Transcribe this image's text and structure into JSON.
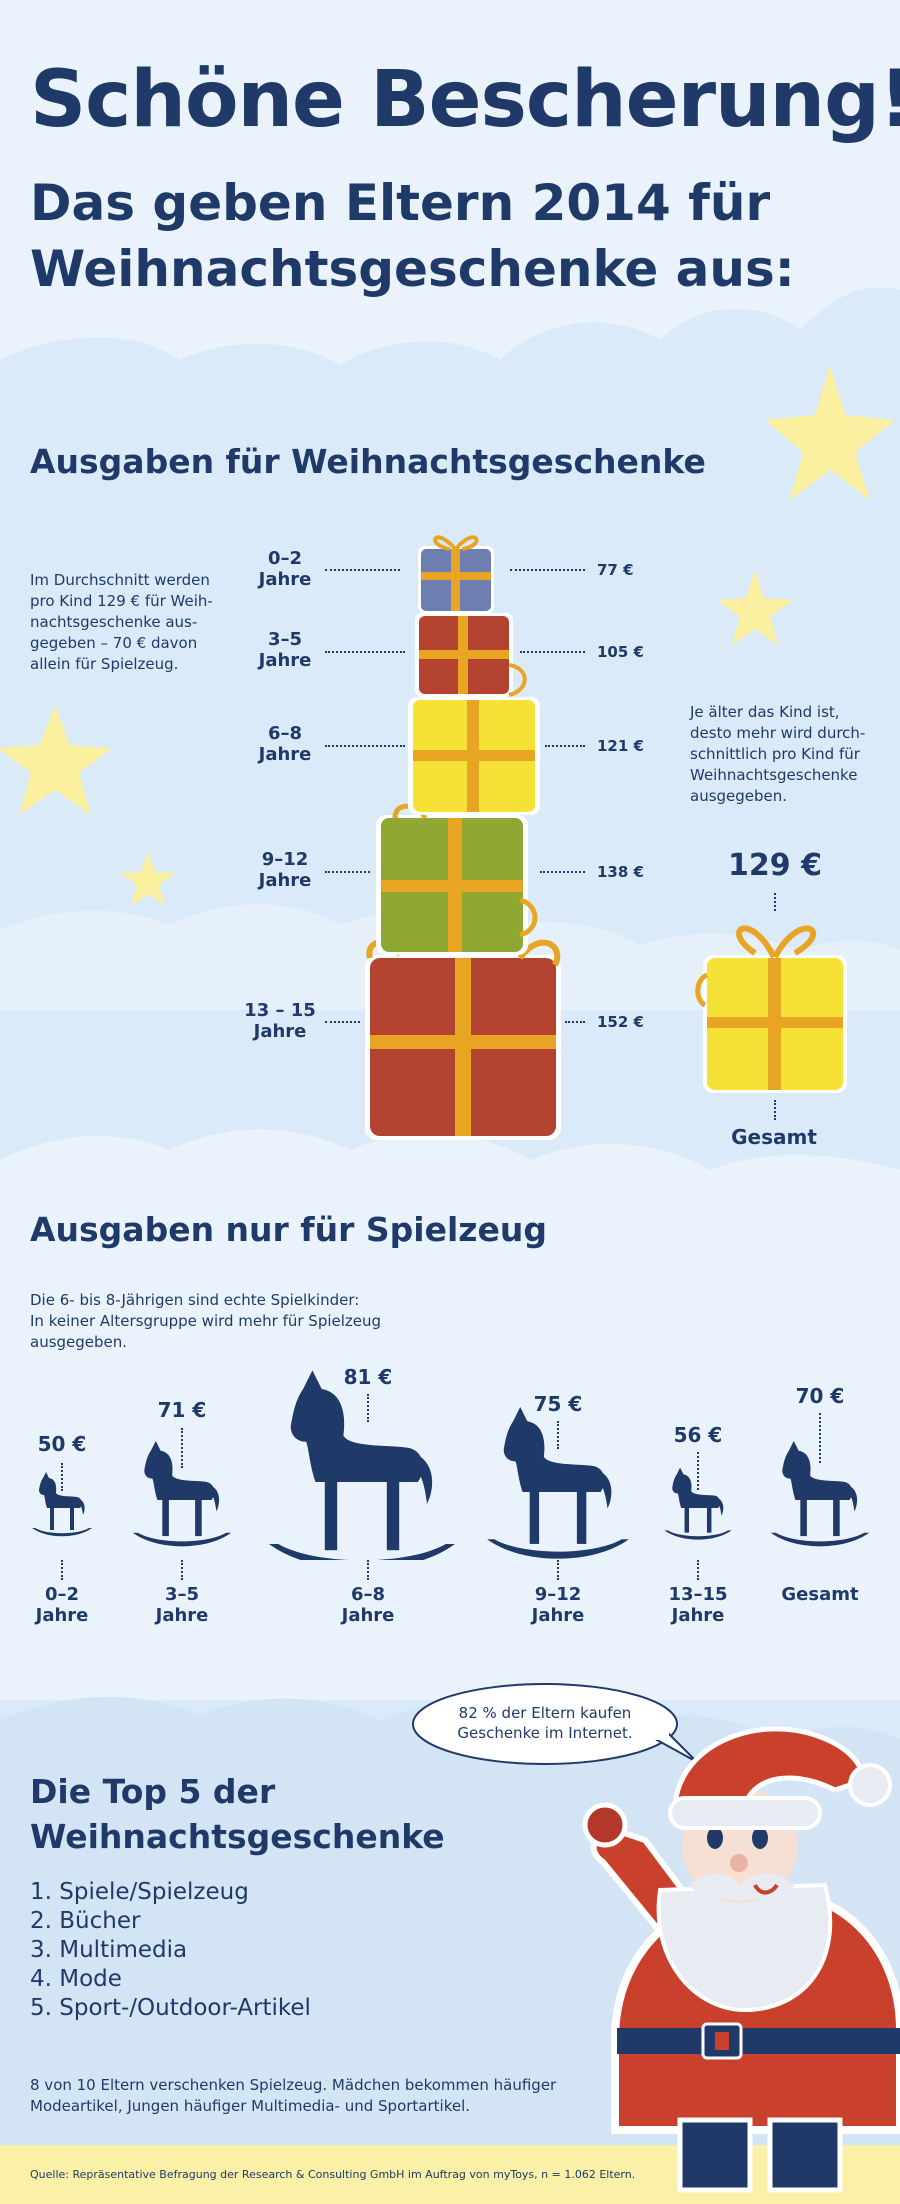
{
  "title": "Schöne Bescherung!",
  "subtitle_line1": "Das geben Eltern 2014 für",
  "subtitle_line2": "Weihnachtsgeschenke aus:",
  "gifts_section": {
    "heading": "Ausgaben für Weihnachtsgeschenke",
    "intro": "Im Durchschnitt werden pro Kind 129 € für Weih-nachtsgeschenke aus-gegeben – 70 € davon allein für Spielzeug.",
    "side_note": "Je älter das Kind ist, desto mehr wird durch-schnittlich pro Kind für Weihnachtsgeschenke ausgegeben.",
    "items": [
      {
        "age_line1": "0–2",
        "age_line2": "Jahre",
        "value": "77 €",
        "box_color": "#6c7fb0"
      },
      {
        "age_line1": "3–5",
        "age_line2": "Jahre",
        "value": "105 €",
        "box_color": "#b34231"
      },
      {
        "age_line1": "6–8",
        "age_line2": "Jahre",
        "value": "121 €",
        "box_color": "#f6e136"
      },
      {
        "age_line1": "9–12",
        "age_line2": "Jahre",
        "value": "138 €",
        "box_color": "#8fa733"
      },
      {
        "age_line1": "13 – 15",
        "age_line2": "Jahre",
        "value": "152 €",
        "box_color": "#b34231"
      }
    ],
    "total_value": "129 €",
    "total_label": "Gesamt"
  },
  "toys_section": {
    "heading": "Ausgaben nur für Spielzeug",
    "intro_line1": "Die 6- bis 8-Jährigen sind echte Spielkinder:",
    "intro_line2": "In keiner Altersgruppe wird mehr für Spielzeug",
    "intro_line3": "ausgegeben.",
    "items": [
      {
        "value": "50 €",
        "label_line1": "0–2",
        "label_line2": "Jahre"
      },
      {
        "value": "71 €",
        "label_line1": "3–5",
        "label_line2": "Jahre"
      },
      {
        "value": "81 €",
        "label_line1": "6–8",
        "label_line2": "Jahre"
      },
      {
        "value": "75 €",
        "label_line1": "9–12",
        "label_line2": "Jahre"
      },
      {
        "value": "56 €",
        "label_line1": "13–15",
        "label_line2": "Jahre"
      },
      {
        "value": "70 €",
        "label_line1": "Gesamt",
        "label_line2": ""
      }
    ]
  },
  "top5_section": {
    "heading_line1": "Die Top 5 der",
    "heading_line2": "Weihnachtsgeschenke",
    "items": [
      "1. Spiele/Spielzeug",
      "2. Bücher",
      "3. Multimedia",
      "4. Mode",
      "5. Sport-/Outdoor-Artikel"
    ],
    "speech_line1": "82 % der Eltern kaufen",
    "speech_line2": "Geschenke im Internet.",
    "footnote_line1": "8 von 10 Eltern verschenken Spielzeug. Mädchen bekommen häufiger",
    "footnote_line2": "Modeartikel, Jungen häufiger Multimedia- und Sportartikel."
  },
  "source": "Quelle: Repräsentative Befragung der Research & Consulting GmbH im Auftrag von myToys, n = 1.062 Eltern.",
  "colors": {
    "navy": "#1f3a68",
    "sky": "#dbeaf8",
    "cloud": "#eaf3fb",
    "star": "#fbefa0",
    "ribbon": "#e8a524",
    "footer": "#fbf0a8"
  }
}
